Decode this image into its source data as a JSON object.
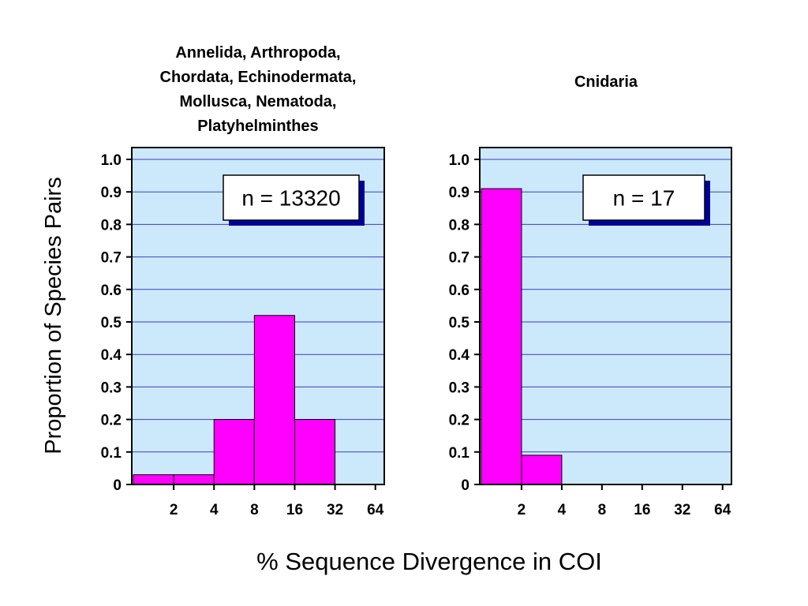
{
  "chart_data": {
    "ylabel": "Proportion of Species Pairs",
    "xlabel": "% Sequence Divergence in COI",
    "ylim": [
      0,
      1.0
    ],
    "yticks": [
      "0",
      "0.1",
      "0.2",
      "0.3",
      "0.4",
      "0.5",
      "0.6",
      "0.7",
      "0.8",
      "0.9",
      "1.0"
    ],
    "grid": true,
    "colors": {
      "plot_bg": "#cce9fb",
      "bar": "#ff00ff",
      "grid": "#3c3cc8",
      "shadow": "#000099"
    },
    "panels": [
      {
        "type": "bar",
        "title_lines": [
          "Annelida, Arthropoda,",
          "Chordata, Echinodermata,",
          "Mollusca, Nematoda,",
          "Platyhelminthes"
        ],
        "xticks": [
          "2",
          "4",
          "8",
          "16",
          "32",
          "64"
        ],
        "bins": [
          "<2",
          "2-4",
          "4-8",
          "8-16",
          "16-32",
          "32-64"
        ],
        "values": [
          0.03,
          0.03,
          0.2,
          0.52,
          0.2,
          0
        ],
        "n_label": "n = 13320"
      },
      {
        "type": "bar",
        "title_lines": [
          "Cnidaria"
        ],
        "xticks": [
          "2",
          "4",
          "8",
          "16",
          "32",
          "64"
        ],
        "bins": [
          "<2",
          "2-4",
          "4-8",
          "8-16",
          "16-32",
          "32-64"
        ],
        "values": [
          0.91,
          0.09,
          0,
          0,
          0,
          0
        ],
        "n_label": "n = 17"
      }
    ]
  }
}
